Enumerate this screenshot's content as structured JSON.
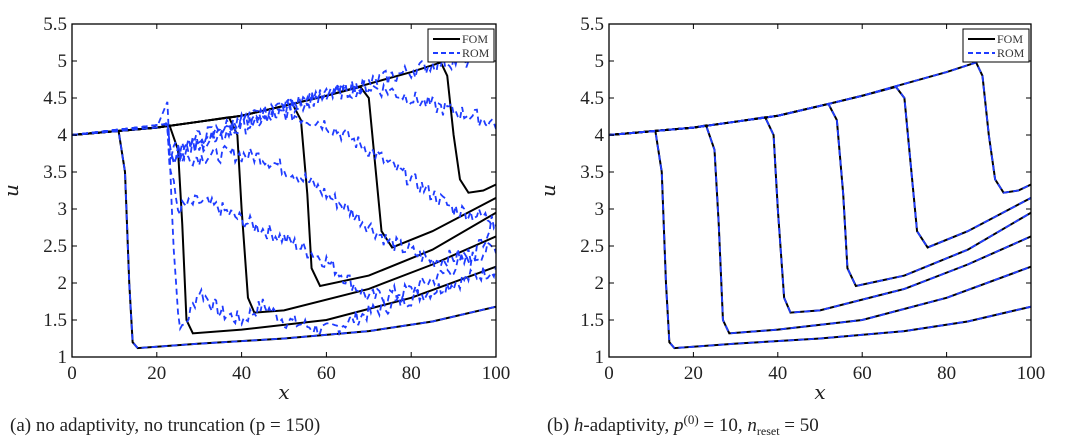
{
  "chart_data": [
    {
      "type": "line",
      "caption": "(a) no adaptivity, no truncation (p = 150)",
      "xlabel": "x",
      "ylabel": "u",
      "xlim": [
        0,
        100
      ],
      "ylim": [
        1,
        5.5
      ],
      "xticks": [
        0,
        20,
        40,
        60,
        80,
        100
      ],
      "yticks": [
        1,
        1.5,
        2,
        2.5,
        3,
        3.5,
        4,
        4.5,
        5,
        5.5
      ],
      "legend": {
        "placement": "top-right",
        "entries": [
          "FOM",
          "ROM"
        ]
      },
      "colors": {
        "FOM": "#000000",
        "ROM": "#1f3cff"
      },
      "series": [
        {
          "name": "FOM",
          "style": "solid",
          "curves": [
            [
              [
                0,
                4
              ],
              [
                10,
                4.05
              ],
              [
                11,
                4.05
              ],
              [
                12.5,
                3.5
              ],
              [
                13.5,
                2.0
              ],
              [
                14.3,
                1.2
              ],
              [
                15.5,
                1.12
              ],
              [
                30,
                1.18
              ],
              [
                50,
                1.25
              ],
              [
                70,
                1.35
              ],
              [
                85,
                1.48
              ],
              [
                100,
                1.68
              ]
            ],
            [
              [
                0,
                4
              ],
              [
                10,
                4.05
              ],
              [
                20,
                4.1
              ],
              [
                23,
                4.13
              ],
              [
                25,
                3.8
              ],
              [
                26,
                2.8
              ],
              [
                27,
                1.5
              ],
              [
                28.5,
                1.32
              ],
              [
                40,
                1.37
              ],
              [
                60,
                1.5
              ],
              [
                80,
                1.8
              ],
              [
                100,
                2.22
              ]
            ],
            [
              [
                0,
                4
              ],
              [
                10,
                4.05
              ],
              [
                20,
                4.1
              ],
              [
                30,
                4.18
              ],
              [
                37,
                4.24
              ],
              [
                39,
                4.0
              ],
              [
                40,
                3.0
              ],
              [
                41.5,
                1.8
              ],
              [
                43,
                1.6
              ],
              [
                50,
                1.63
              ],
              [
                70,
                1.92
              ],
              [
                85,
                2.25
              ],
              [
                100,
                2.63
              ]
            ],
            [
              [
                0,
                4
              ],
              [
                10,
                4.05
              ],
              [
                20,
                4.1
              ],
              [
                30,
                4.18
              ],
              [
                40,
                4.26
              ],
              [
                52,
                4.42
              ],
              [
                54,
                4.2
              ],
              [
                55.5,
                3.2
              ],
              [
                56.5,
                2.2
              ],
              [
                58.5,
                1.96
              ],
              [
                70,
                2.1
              ],
              [
                85,
                2.45
              ],
              [
                100,
                2.95
              ]
            ],
            [
              [
                0,
                4
              ],
              [
                10,
                4.05
              ],
              [
                20,
                4.1
              ],
              [
                30,
                4.18
              ],
              [
                40,
                4.26
              ],
              [
                52,
                4.42
              ],
              [
                60,
                4.53
              ],
              [
                68,
                4.65
              ],
              [
                70,
                4.5
              ],
              [
                71.5,
                3.6
              ],
              [
                73,
                2.7
              ],
              [
                75.5,
                2.48
              ],
              [
                85,
                2.7
              ],
              [
                100,
                3.15
              ]
            ],
            [
              [
                0,
                4
              ],
              [
                10,
                4.05
              ],
              [
                20,
                4.1
              ],
              [
                30,
                4.18
              ],
              [
                40,
                4.26
              ],
              [
                52,
                4.42
              ],
              [
                60,
                4.53
              ],
              [
                68,
                4.66
              ],
              [
                80,
                4.85
              ],
              [
                87,
                4.98
              ],
              [
                88.5,
                4.8
              ],
              [
                90,
                4.0
              ],
              [
                91.5,
                3.4
              ],
              [
                93.5,
                3.22
              ],
              [
                97,
                3.25
              ],
              [
                100,
                3.33
              ]
            ]
          ]
        },
        {
          "name": "ROM",
          "style": "dashed",
          "noisy": true,
          "curves": [
            [
              [
                0,
                4
              ],
              [
                10,
                4.05
              ],
              [
                11,
                4.05
              ],
              [
                12.5,
                3.5
              ],
              [
                13.5,
                2.0
              ],
              [
                14.3,
                1.2
              ],
              [
                15.5,
                1.12
              ],
              [
                30,
                1.18
              ],
              [
                50,
                1.25
              ],
              [
                70,
                1.35
              ],
              [
                85,
                1.48
              ],
              [
                100,
                1.68
              ]
            ],
            [
              [
                0,
                4
              ],
              [
                20,
                4.1
              ],
              [
                22.5,
                4.45
              ],
              [
                23,
                3.8
              ],
              [
                24,
                2.5
              ],
              [
                25,
                1.6
              ],
              [
                26,
                1.35
              ],
              [
                30,
                1.9
              ],
              [
                35,
                1.6
              ],
              [
                40,
                1.5
              ],
              [
                45,
                1.7
              ],
              [
                50,
                1.5
              ],
              [
                60,
                1.35
              ],
              [
                70,
                1.6
              ],
              [
                80,
                1.8
              ],
              [
                90,
                2.0
              ],
              [
                100,
                2.2
              ]
            ],
            [
              [
                0,
                4
              ],
              [
                22.5,
                4.15
              ],
              [
                23,
                3.6
              ],
              [
                25,
                3.0
              ],
              [
                30,
                3.1
              ],
              [
                35,
                3.0
              ],
              [
                40,
                2.85
              ],
              [
                50,
                2.6
              ],
              [
                60,
                2.3
              ],
              [
                70,
                1.8
              ],
              [
                80,
                1.9
              ],
              [
                90,
                2.2
              ],
              [
                100,
                2.5
              ]
            ],
            [
              [
                0,
                4
              ],
              [
                22.5,
                4.15
              ],
              [
                23,
                3.7
              ],
              [
                30,
                3.7
              ],
              [
                37,
                3.75
              ],
              [
                45,
                3.7
              ],
              [
                55,
                3.4
              ],
              [
                65,
                3.0
              ],
              [
                75,
                2.55
              ],
              [
                85,
                2.3
              ],
              [
                95,
                2.4
              ],
              [
                100,
                2.9
              ]
            ],
            [
              [
                0,
                4
              ],
              [
                22.5,
                4.15
              ],
              [
                23,
                3.7
              ],
              [
                40,
                4.1
              ],
              [
                50,
                4.3
              ],
              [
                60,
                4.15
              ],
              [
                70,
                3.8
              ],
              [
                80,
                3.4
              ],
              [
                90,
                3.0
              ],
              [
                100,
                2.85
              ]
            ],
            [
              [
                0,
                4
              ],
              [
                22.5,
                4.15
              ],
              [
                23,
                3.7
              ],
              [
                40,
                4.15
              ],
              [
                50,
                4.4
              ],
              [
                60,
                4.55
              ],
              [
                70,
                4.65
              ],
              [
                75,
                4.6
              ],
              [
                85,
                4.4
              ],
              [
                95,
                4.25
              ],
              [
                100,
                4.15
              ]
            ],
            [
              [
                0,
                4
              ],
              [
                22.5,
                4.15
              ],
              [
                23,
                3.8
              ],
              [
                40,
                4.2
              ],
              [
                55,
                4.45
              ],
              [
                70,
                4.7
              ],
              [
                85,
                4.95
              ],
              [
                88,
                5.0
              ],
              [
                95,
                5.0
              ]
            ]
          ]
        }
      ]
    },
    {
      "type": "line",
      "caption": "(b) h-adaptivity, p(0) = 10, n_reset = 50",
      "caption_parts": {
        "prefix": "(b) ",
        "h": "h",
        "mid": "-adaptivity, ",
        "p": "p",
        "sup": "(0)",
        "eq1": " = 10, ",
        "n": "n",
        "sub": "reset",
        "eq2": " = 50"
      },
      "xlabel": "x",
      "ylabel": "u",
      "xlim": [
        0,
        100
      ],
      "ylim": [
        1,
        5.5
      ],
      "xticks": [
        0,
        20,
        40,
        60,
        80,
        100
      ],
      "yticks": [
        1,
        1.5,
        2,
        2.5,
        3,
        3.5,
        4,
        4.5,
        5,
        5.5
      ],
      "legend": {
        "placement": "top-right",
        "entries": [
          "FOM",
          "ROM"
        ]
      },
      "colors": {
        "FOM": "#000000",
        "ROM": "#1f3cff"
      },
      "series": [
        {
          "name": "FOM",
          "style": "solid",
          "same_as_panel_a_FOM": true
        },
        {
          "name": "ROM",
          "style": "dashed",
          "matches_FOM": true
        }
      ]
    }
  ]
}
